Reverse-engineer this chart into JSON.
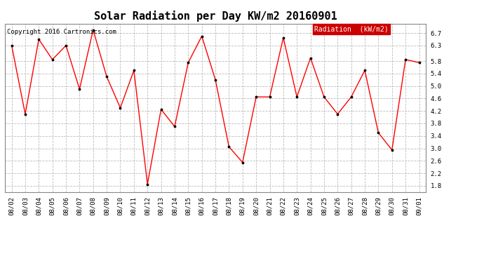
{
  "title": "Solar Radiation per Day KW/m2 20160901",
  "copyright_text": "Copyright 2016 Cartronics.com",
  "legend_label": "Radiation  (kW/m2)",
  "x_labels": [
    "08/02",
    "08/03",
    "08/04",
    "08/05",
    "08/06",
    "08/07",
    "08/08",
    "08/09",
    "08/10",
    "08/11",
    "08/12",
    "08/13",
    "08/14",
    "08/15",
    "08/16",
    "08/17",
    "08/18",
    "08/19",
    "08/20",
    "08/21",
    "08/22",
    "08/23",
    "08/24",
    "08/25",
    "08/26",
    "08/27",
    "08/28",
    "08/29",
    "08/30",
    "08/31",
    "09/01"
  ],
  "y_values": [
    6.3,
    4.1,
    6.5,
    5.85,
    6.3,
    4.9,
    6.8,
    5.3,
    4.3,
    5.5,
    1.85,
    4.25,
    3.7,
    5.75,
    6.6,
    5.2,
    3.05,
    2.55,
    4.65,
    4.65,
    6.55,
    4.65,
    5.9,
    4.65,
    4.1,
    4.65,
    5.5,
    3.5,
    2.95,
    5.85,
    5.75
  ],
  "ylim": [
    1.6,
    7.0
  ],
  "yticks": [
    1.8,
    2.2,
    2.6,
    3.0,
    3.4,
    3.8,
    4.2,
    4.6,
    5.0,
    5.4,
    5.8,
    6.3,
    6.7
  ],
  "ytick_labels": [
    "1.8",
    "2.2",
    "2.6",
    "3.0",
    "3.4",
    "3.8",
    "4.2",
    "4.6",
    "5.0",
    "5.4",
    "5.8",
    "6.3",
    "6.7"
  ],
  "line_color": "red",
  "marker_color": "black",
  "background_color": "#ffffff",
  "grid_color": "#bbbbbb",
  "title_fontsize": 11,
  "copyright_fontsize": 6.5,
  "tick_fontsize": 6.5,
  "legend_bg": "#cc0000",
  "legend_text_color": "#ffffff",
  "legend_fontsize": 7
}
